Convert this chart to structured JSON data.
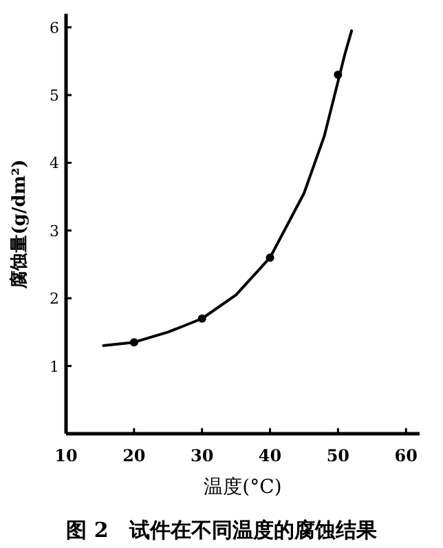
{
  "chart_data": {
    "type": "line",
    "title": "图 2　试件在不同温度的腐蚀结果",
    "xlabel": "温度(°C)",
    "ylabel": "腐蚀量(g/dm²)",
    "xlim": [
      10,
      62
    ],
    "xticks": [
      10,
      20,
      30,
      40,
      50,
      60
    ],
    "ylim": [
      0,
      6.2
    ],
    "yticks": [
      1,
      2,
      3,
      4,
      5,
      6
    ],
    "grid": false,
    "series": [
      {
        "color": "#000000",
        "marker": "none",
        "line_style": "solid",
        "x": [
          15.5,
          20,
          25,
          30,
          35,
          40,
          45,
          48,
          50,
          51,
          52
        ],
        "values": [
          1.3,
          1.35,
          1.5,
          1.7,
          2.05,
          2.6,
          3.55,
          4.4,
          5.2,
          5.6,
          5.95
        ]
      },
      {
        "type": "scatter",
        "color": "#000000",
        "marker": "circle",
        "x": [
          20,
          30,
          40,
          50
        ],
        "values": [
          1.35,
          1.7,
          2.6,
          5.3
        ]
      }
    ]
  }
}
